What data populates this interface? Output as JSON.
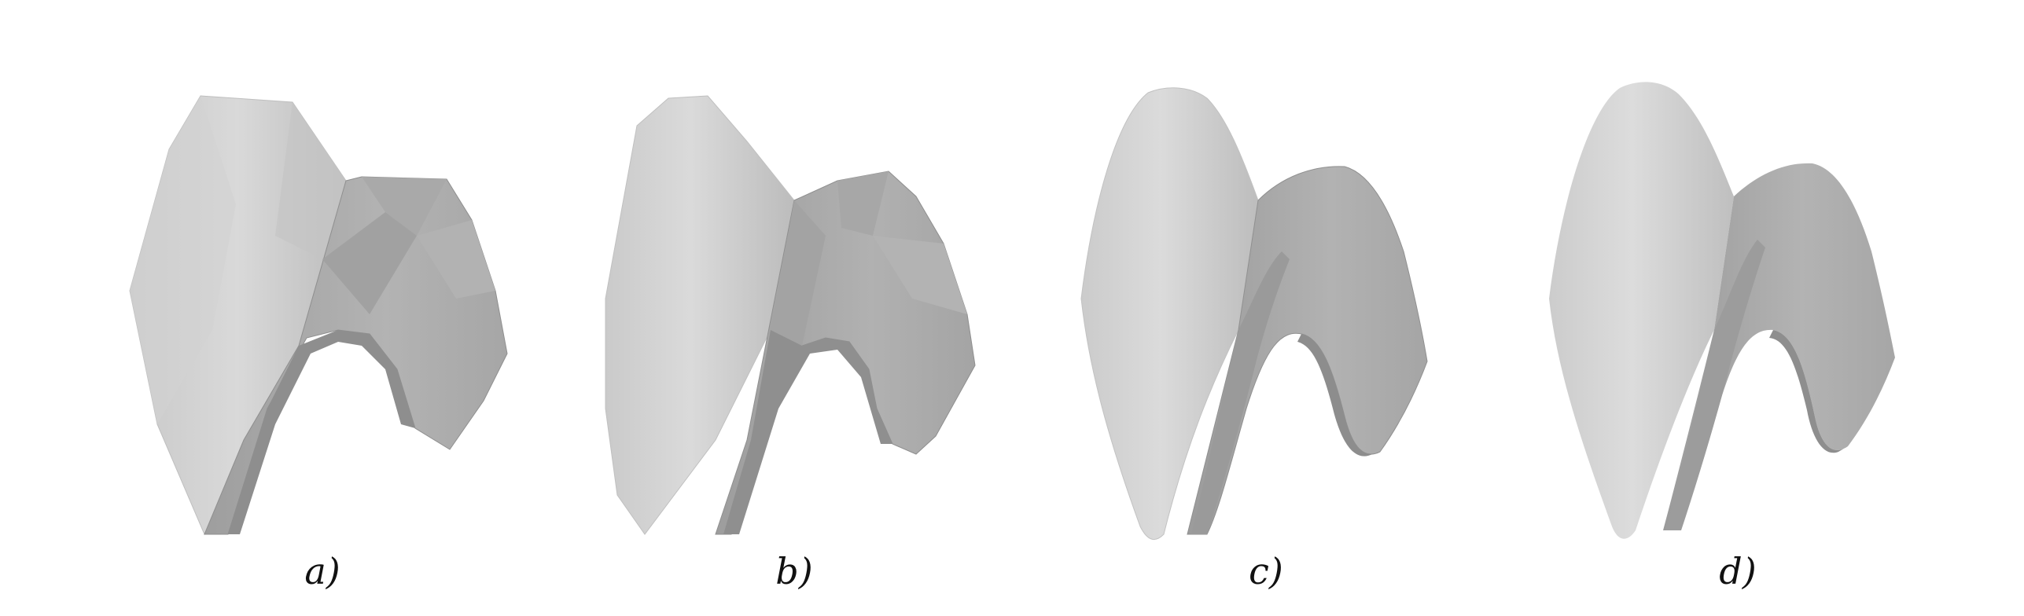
{
  "figure": {
    "panels": [
      {
        "caption": "a)"
      },
      {
        "caption": "b)"
      },
      {
        "caption": "c)"
      },
      {
        "caption": "d)"
      }
    ],
    "colors": {
      "light_face": "#d6d6d6",
      "mid_face": "#b9b9b9",
      "dark_face": "#999999",
      "edge": "#8c8c8c"
    }
  }
}
